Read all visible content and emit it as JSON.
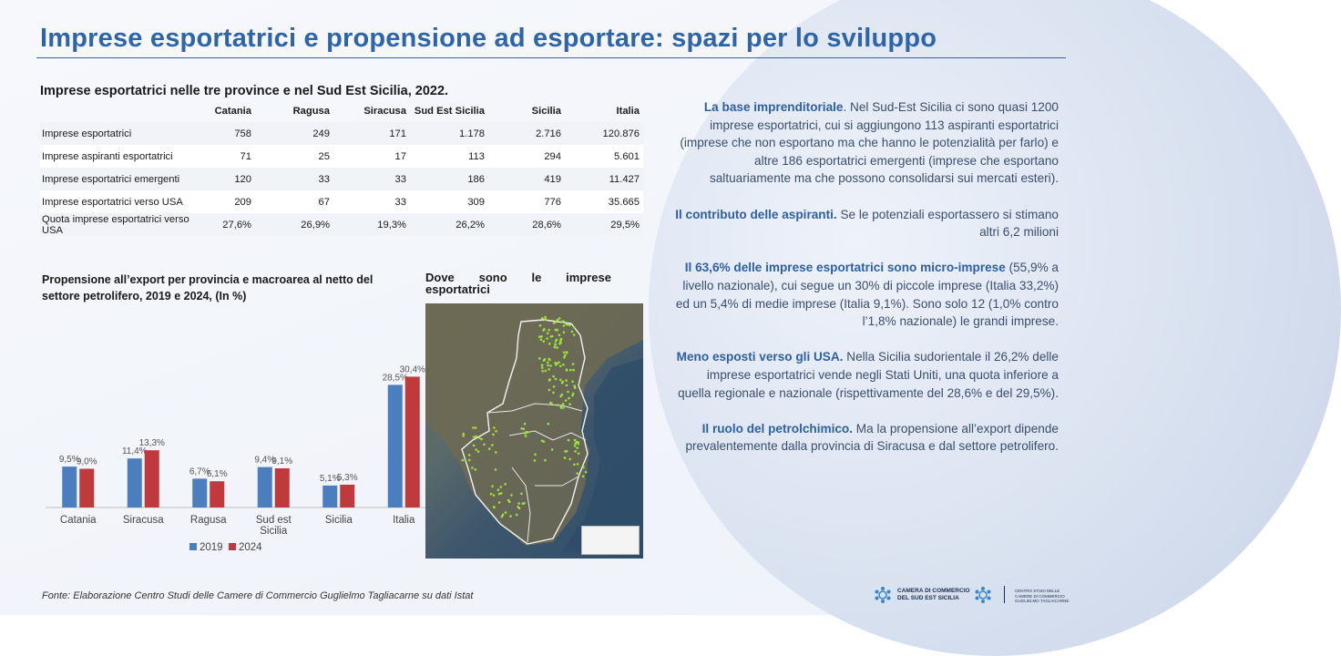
{
  "title": "Imprese esportatrici e propensione ad esportare: spazi per lo sviluppo",
  "table": {
    "title": "Imprese esportatrici nelle tre province e nel Sud Est Sicilia, 2022.",
    "columns": [
      "",
      "Catania",
      "Ragusa",
      "Siracusa",
      "Sud Est Sicilia",
      "Sicilia",
      "Italia"
    ],
    "rows": [
      [
        "Imprese esportatrici",
        "758",
        "249",
        "171",
        "1.178",
        "2.716",
        "120.876"
      ],
      [
        "Imprese aspiranti esportatrici",
        "71",
        "25",
        "17",
        "113",
        "294",
        "5.601"
      ],
      [
        "Imprese esportatrici emergenti",
        "120",
        "33",
        "33",
        "186",
        "419",
        "11.427"
      ],
      [
        "Imprese esportatrici verso USA",
        "209",
        "67",
        "33",
        "309",
        "776",
        "35.665"
      ],
      [
        "Quota imprese esportatrici verso USA",
        "27,6%",
        "26,9%",
        "19,3%",
        "26,2%",
        "28,6%",
        "29,5%"
      ]
    ]
  },
  "chart_data": {
    "type": "bar",
    "title": "Propensione all’export per provincia e macroarea al netto del settore petrolifero, 2019 e 2024, (In %)",
    "categories": [
      "Catania",
      "Siracusa",
      "Ragusa",
      "Sud est Sicilia",
      "Sicilia",
      "Italia"
    ],
    "series": [
      {
        "name": "2019",
        "color": "#4a7ebf",
        "values": [
          9.5,
          11.4,
          6.7,
          9.4,
          5.1,
          28.5
        ],
        "labels": [
          "9,5%",
          "11,4%",
          "6,7%",
          "9,4%",
          "5,1%",
          "28,5%"
        ]
      },
      {
        "name": "2024",
        "color": "#c0393b",
        "values": [
          9.0,
          13.3,
          6.1,
          9.1,
          5.3,
          30.4
        ],
        "labels": [
          "9,0%",
          "13,3%",
          "6,1%",
          "9,1%",
          "5,3%",
          "30,4%"
        ]
      }
    ],
    "ylim": [
      0,
      36
    ],
    "legend": "bottom",
    "grid": false
  },
  "map": {
    "title": "Dove sono le imprese esportatrici"
  },
  "side": [
    {
      "bold": "La base imprenditoriale",
      "text": ". Nel Sud-Est Sicilia ci sono quasi 1200 imprese esportatrici, cui si aggiungono 113 aspiranti esportatrici (imprese che non esportano ma che hanno le potenzialità per farlo) e altre 186 esportatrici emergenti (imprese che esportano saltuariamente ma che possono consolidarsi sui mercati esteri)."
    },
    {
      "bold": "Il contributo delle aspiranti.",
      "text": " Se le potenziali esportassero si stimano altri 6,2 milioni"
    },
    {
      "bold": "Il 63,6% delle imprese esportatrici sono micro-imprese",
      "text": " (55,9% a livello nazionale), cui segue un 30% di piccole imprese (Italia 33,2%) ed un 5,4% di medie imprese (Italia 9,1%). Sono solo 12 (1,0% contro l’1,8% nazionale) le grandi imprese."
    },
    {
      "bold": "Meno esposti verso gli USA.",
      "text": " Nella Sicilia sudorientale il 26,2% delle imprese esportatrici vende negli Stati Uniti, una quota inferiore a quella regionale e nazionale (rispettivamente del 28,6% e del 29,5%)."
    },
    {
      "bold": "Il ruolo del petrolchimico.",
      "text": " Ma la propensione all’export dipende prevalentemente dalla provincia di Siracusa e dal settore petrolifero."
    }
  ],
  "source": "Fonte: Elaborazione Centro Studi delle Camere di Commercio Guglielmo Tagliacarne su dati Istat",
  "logos": {
    "chamber_line1": "CAMERA DI COMMERCIO",
    "chamber_line2": "DEL SUD EST SICILIA",
    "tagliacarne_line1": "CENTRO STUDI DELLE",
    "tagliacarne_line2": "CAMERE DI COMMERCIO",
    "tagliacarne_line3": "GUGLIELMO TAGLIACARNE"
  }
}
